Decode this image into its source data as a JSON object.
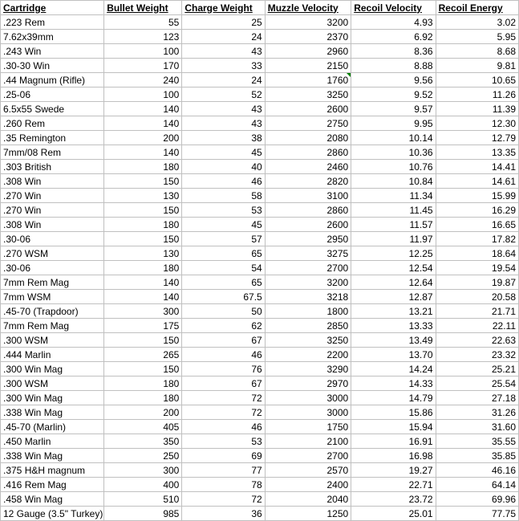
{
  "columns": [
    {
      "key": "cartridge",
      "label": "Cartridge",
      "class": "col-cartridge",
      "cellClass": "txt"
    },
    {
      "key": "bullet_weight",
      "label": "Bullet Weight",
      "class": "col-bw",
      "cellClass": "num"
    },
    {
      "key": "charge_weight",
      "label": "Charge Weight",
      "class": "col-cw",
      "cellClass": "num"
    },
    {
      "key": "muzzle_velocity",
      "label": "Muzzle Velocity",
      "class": "col-mv",
      "cellClass": "num"
    },
    {
      "key": "recoil_velocity",
      "label": "Recoil Velocity",
      "class": "col-rv",
      "cellClass": "num"
    },
    {
      "key": "recoil_energy",
      "label": "Recoil Energy",
      "class": "col-re",
      "cellClass": "num"
    }
  ],
  "marker_row": 4,
  "marker_col": "muzzle_velocity",
  "rows": [
    {
      "cartridge": ".223 Rem",
      "bullet_weight": "55",
      "charge_weight": "25",
      "muzzle_velocity": "3200",
      "recoil_velocity": "4.93",
      "recoil_energy": "3.02"
    },
    {
      "cartridge": "7.62x39mm",
      "bullet_weight": "123",
      "charge_weight": "24",
      "muzzle_velocity": "2370",
      "recoil_velocity": "6.92",
      "recoil_energy": "5.95"
    },
    {
      "cartridge": ".243 Win",
      "bullet_weight": "100",
      "charge_weight": "43",
      "muzzle_velocity": "2960",
      "recoil_velocity": "8.36",
      "recoil_energy": "8.68"
    },
    {
      "cartridge": ".30-30 Win",
      "bullet_weight": "170",
      "charge_weight": "33",
      "muzzle_velocity": "2150",
      "recoil_velocity": "8.88",
      "recoil_energy": "9.81"
    },
    {
      "cartridge": ".44 Magnum (Rifle)",
      "bullet_weight": "240",
      "charge_weight": "24",
      "muzzle_velocity": "1760",
      "recoil_velocity": "9.56",
      "recoil_energy": "10.65"
    },
    {
      "cartridge": ".25-06",
      "bullet_weight": "100",
      "charge_weight": "52",
      "muzzle_velocity": "3250",
      "recoil_velocity": "9.52",
      "recoil_energy": "11.26"
    },
    {
      "cartridge": "6.5x55 Swede",
      "bullet_weight": "140",
      "charge_weight": "43",
      "muzzle_velocity": "2600",
      "recoil_velocity": "9.57",
      "recoil_energy": "11.39"
    },
    {
      "cartridge": ".260 Rem",
      "bullet_weight": "140",
      "charge_weight": "43",
      "muzzle_velocity": "2750",
      "recoil_velocity": "9.95",
      "recoil_energy": "12.30"
    },
    {
      "cartridge": ".35 Remington",
      "bullet_weight": "200",
      "charge_weight": "38",
      "muzzle_velocity": "2080",
      "recoil_velocity": "10.14",
      "recoil_energy": "12.79"
    },
    {
      "cartridge": "7mm/08 Rem",
      "bullet_weight": "140",
      "charge_weight": "45",
      "muzzle_velocity": "2860",
      "recoil_velocity": "10.36",
      "recoil_energy": "13.35"
    },
    {
      "cartridge": ".303 British",
      "bullet_weight": "180",
      "charge_weight": "40",
      "muzzle_velocity": "2460",
      "recoil_velocity": "10.76",
      "recoil_energy": "14.41"
    },
    {
      "cartridge": ".308 Win",
      "bullet_weight": "150",
      "charge_weight": "46",
      "muzzle_velocity": "2820",
      "recoil_velocity": "10.84",
      "recoil_energy": "14.61"
    },
    {
      "cartridge": ".270 Win",
      "bullet_weight": "130",
      "charge_weight": "58",
      "muzzle_velocity": "3100",
      "recoil_velocity": "11.34",
      "recoil_energy": "15.99"
    },
    {
      "cartridge": ".270 Win",
      "bullet_weight": "150",
      "charge_weight": "53",
      "muzzle_velocity": "2860",
      "recoil_velocity": "11.45",
      "recoil_energy": "16.29"
    },
    {
      "cartridge": ".308 Win",
      "bullet_weight": "180",
      "charge_weight": "45",
      "muzzle_velocity": "2600",
      "recoil_velocity": "11.57",
      "recoil_energy": "16.65"
    },
    {
      "cartridge": ".30-06",
      "bullet_weight": "150",
      "charge_weight": "57",
      "muzzle_velocity": "2950",
      "recoil_velocity": "11.97",
      "recoil_energy": "17.82"
    },
    {
      "cartridge": ".270 WSM",
      "bullet_weight": "130",
      "charge_weight": "65",
      "muzzle_velocity": "3275",
      "recoil_velocity": "12.25",
      "recoil_energy": "18.64"
    },
    {
      "cartridge": ".30-06",
      "bullet_weight": "180",
      "charge_weight": "54",
      "muzzle_velocity": "2700",
      "recoil_velocity": "12.54",
      "recoil_energy": "19.54"
    },
    {
      "cartridge": "7mm Rem Mag",
      "bullet_weight": "140",
      "charge_weight": "65",
      "muzzle_velocity": "3200",
      "recoil_velocity": "12.64",
      "recoil_energy": "19.87"
    },
    {
      "cartridge": "7mm WSM",
      "bullet_weight": "140",
      "charge_weight": "67.5",
      "muzzle_velocity": "3218",
      "recoil_velocity": "12.87",
      "recoil_energy": "20.58"
    },
    {
      "cartridge": ".45-70 (Trapdoor)",
      "bullet_weight": "300",
      "charge_weight": "50",
      "muzzle_velocity": "1800",
      "recoil_velocity": "13.21",
      "recoil_energy": "21.71"
    },
    {
      "cartridge": "7mm Rem Mag",
      "bullet_weight": "175",
      "charge_weight": "62",
      "muzzle_velocity": "2850",
      "recoil_velocity": "13.33",
      "recoil_energy": "22.11"
    },
    {
      "cartridge": ".300 WSM",
      "bullet_weight": "150",
      "charge_weight": "67",
      "muzzle_velocity": "3250",
      "recoil_velocity": "13.49",
      "recoil_energy": "22.63"
    },
    {
      "cartridge": ".444 Marlin",
      "bullet_weight": "265",
      "charge_weight": "46",
      "muzzle_velocity": "2200",
      "recoil_velocity": "13.70",
      "recoil_energy": "23.32"
    },
    {
      "cartridge": ".300 Win Mag",
      "bullet_weight": "150",
      "charge_weight": "76",
      "muzzle_velocity": "3290",
      "recoil_velocity": "14.24",
      "recoil_energy": "25.21"
    },
    {
      "cartridge": ".300 WSM",
      "bullet_weight": "180",
      "charge_weight": "67",
      "muzzle_velocity": "2970",
      "recoil_velocity": "14.33",
      "recoil_energy": "25.54"
    },
    {
      "cartridge": ".300 Win Mag",
      "bullet_weight": "180",
      "charge_weight": "72",
      "muzzle_velocity": "3000",
      "recoil_velocity": "14.79",
      "recoil_energy": "27.18"
    },
    {
      "cartridge": ".338 Win Mag",
      "bullet_weight": "200",
      "charge_weight": "72",
      "muzzle_velocity": "3000",
      "recoil_velocity": "15.86",
      "recoil_energy": "31.26"
    },
    {
      "cartridge": ".45-70 (Marlin)",
      "bullet_weight": "405",
      "charge_weight": "46",
      "muzzle_velocity": "1750",
      "recoil_velocity": "15.94",
      "recoil_energy": "31.60"
    },
    {
      "cartridge": ".450 Marlin",
      "bullet_weight": "350",
      "charge_weight": "53",
      "muzzle_velocity": "2100",
      "recoil_velocity": "16.91",
      "recoil_energy": "35.55"
    },
    {
      "cartridge": ".338 Win Mag",
      "bullet_weight": "250",
      "charge_weight": "69",
      "muzzle_velocity": "2700",
      "recoil_velocity": "16.98",
      "recoil_energy": "35.85"
    },
    {
      "cartridge": ".375 H&H magnum",
      "bullet_weight": "300",
      "charge_weight": "77",
      "muzzle_velocity": "2570",
      "recoil_velocity": "19.27",
      "recoil_energy": "46.16"
    },
    {
      "cartridge": ".416 Rem Mag",
      "bullet_weight": "400",
      "charge_weight": "78",
      "muzzle_velocity": "2400",
      "recoil_velocity": "22.71",
      "recoil_energy": "64.14"
    },
    {
      "cartridge": ".458 Win Mag",
      "bullet_weight": "510",
      "charge_weight": "72",
      "muzzle_velocity": "2040",
      "recoil_velocity": "23.72",
      "recoil_energy": "69.96"
    },
    {
      "cartridge": "12 Gauge (3.5\" Turkey)",
      "bullet_weight": "985",
      "charge_weight": "36",
      "muzzle_velocity": "1250",
      "recoil_velocity": "25.01",
      "recoil_energy": "77.75"
    }
  ]
}
